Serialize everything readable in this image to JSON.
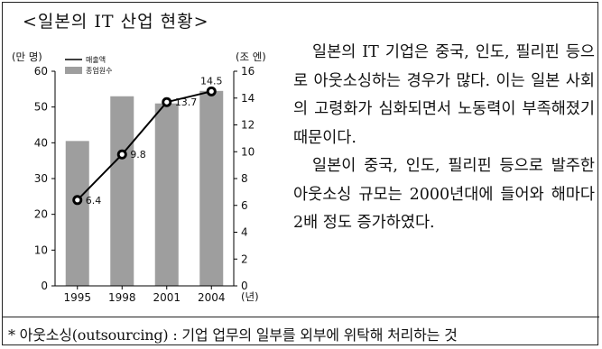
{
  "title": "<일본의 IT 산업 현황>",
  "chart_data": {
    "type": "bar",
    "y_left_unit": "(만 명)",
    "y_right_unit": "(조 엔)",
    "x_unit": "(년)",
    "categories": [
      "1995",
      "1998",
      "2001",
      "2004"
    ],
    "left_axis": {
      "range": [
        0,
        60
      ],
      "ticks": [
        "0",
        "10",
        "20",
        "30",
        "40",
        "50",
        "60"
      ]
    },
    "right_axis": {
      "range": [
        0,
        16
      ],
      "ticks": [
        "0",
        "2",
        "4",
        "6",
        "8",
        "10",
        "12",
        "14",
        "16"
      ]
    },
    "series": [
      {
        "name": "종업원수",
        "type": "bar",
        "axis": "left",
        "values": [
          40.5,
          53,
          51,
          54.5
        ]
      },
      {
        "name": "매출액",
        "type": "line",
        "axis": "right",
        "values": [
          6.4,
          9.8,
          13.7,
          14.5
        ],
        "labels": [
          "6.4",
          "9.8",
          "13.7",
          "14.5"
        ]
      }
    ],
    "colors": {
      "bar": "#9e9e9e",
      "line": "#000000"
    },
    "legend": "top-left"
  },
  "body_paragraphs": [
    "일본의 IT 기업은 중국, 인도, 필리핀 등으로 아웃소싱하는 경우가 많다. 이는 일본 사회의 고령화가 심화되면서 노동력이 부족해졌기 때문이다.",
    "일본이 중국, 인도, 필리핀 등으로 발주한 아웃소싱 규모는 2000년대에 들어와 해마다 2배 정도 증가하였다."
  ],
  "footnote": "* 아웃소싱(outsourcing) : 기업 업무의 일부를 외부에 위탁해 처리하는 것"
}
